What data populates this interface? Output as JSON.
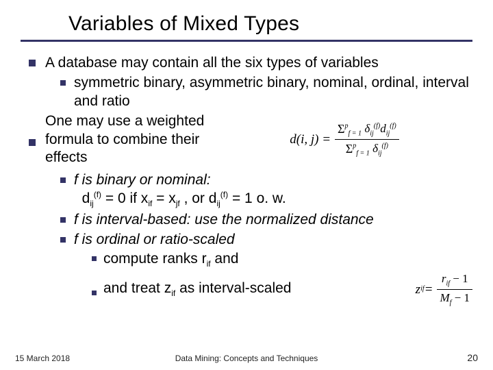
{
  "title": "Variables of Mixed Types",
  "bullets": {
    "b1": "A database may contain all the six types of variables",
    "b1a": "symmetric binary, asymmetric binary, nominal, ordinal, interval and ratio",
    "b2": "One may use a weighted formula to combine their effects",
    "b3a_line1": "f  is binary or nominal:",
    "b3a_line2_pre": "d",
    "b3a_line2_sub1": "ij",
    "b3a_line2_sup1": "(f)",
    "b3a_line2_mid1": " = 0  if x",
    "b3a_line2_sub2": "if",
    "b3a_line2_mid2": " = x",
    "b3a_line2_sub3": "jf",
    "b3a_line2_mid3": " , or d",
    "b3a_line2_sub4": "ij",
    "b3a_line2_sup2": "(f)",
    "b3a_line2_end": " = 1 o. w.",
    "b3b": "f  is interval-based: use the normalized distance",
    "b3c": "f  is ordinal or ratio-scaled",
    "b3c1_pre": "compute ranks r",
    "b3c1_sub": "if",
    "b3c1_post": " and",
    "b3c2_pre": "and treat z",
    "b3c2_sub": "if",
    "b3c2_post": " as interval-scaled"
  },
  "formula_main": {
    "lhs": "d(i, j) = ",
    "sum_sym": "Σ",
    "sum_lo": "f = 1",
    "sum_hi": "p",
    "delta": "δ",
    "delta_sub": "ij",
    "delta_sup": "(f)",
    "d": "d",
    "d_sub": "ij",
    "d_sup": "(f)"
  },
  "formula_side": {
    "z": "z",
    "z_sub": "if",
    "eq": " = ",
    "r": "r",
    "r_sub": "if",
    "minus1_top": " − 1",
    "M": "M",
    "M_sub": "f",
    "minus1_bot": " − 1"
  },
  "footer": {
    "date": "15 March 2018",
    "center": "Data Mining: Concepts and Techniques",
    "page": "20"
  },
  "colors": {
    "rule": "#333366",
    "bullet": "#333366",
    "bg": "#ffffff",
    "text": "#000000"
  }
}
